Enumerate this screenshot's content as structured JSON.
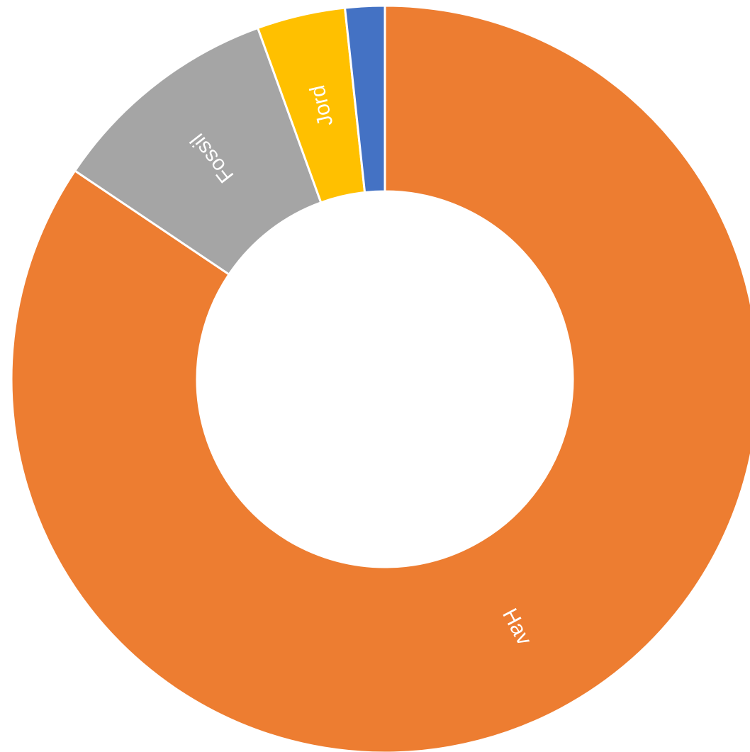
{
  "chart_data": {
    "type": "pie",
    "variant": "donut",
    "title": "",
    "legend": "none",
    "slices": [
      {
        "label": "Hav",
        "value": 84.0,
        "color": "#ED7D31",
        "show_label": true
      },
      {
        "label": "Fossil",
        "value": 10.0,
        "color": "#A5A5A5",
        "show_label": true
      },
      {
        "label": "Jord",
        "value": 3.8,
        "color": "#FFC000",
        "show_label": true
      },
      {
        "label": "",
        "value": 1.7,
        "color": "#4472C4",
        "show_label": false
      }
    ]
  }
}
